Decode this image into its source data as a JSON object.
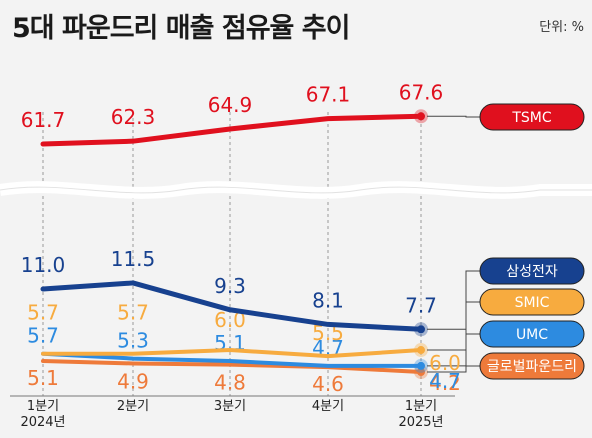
{
  "title": "5대 파운드리 매출 점유율 추이",
  "unit": "단위: %",
  "colors": {
    "tsmc": "#e0101e",
    "samsung": "#17418f",
    "smic": "#f7ab3f",
    "umc": "#2d8be0",
    "gf": "#ee7a3a"
  },
  "chart_data": {
    "type": "line",
    "title": "5대 파운드리 매출 점유율 추이",
    "unit": "단위: %",
    "categories": [
      "1분기 2024년",
      "2분기",
      "3분기",
      "4분기",
      "1분기 2025년"
    ],
    "x_tick_lines": [
      [
        "1분기",
        "2024년"
      ],
      [
        "2분기"
      ],
      [
        "3분기"
      ],
      [
        "4분기"
      ],
      [
        "1분기",
        "2025년"
      ]
    ],
    "y_axis": "broken (gap between ~12 and ~60)",
    "series": [
      {
        "key": "tsmc",
        "name": "TSMC",
        "values": [
          61.7,
          62.3,
          64.9,
          67.1,
          67.6
        ]
      },
      {
        "key": "samsung",
        "name": "삼성전자",
        "values": [
          11.0,
          11.5,
          9.3,
          8.1,
          7.7
        ]
      },
      {
        "key": "smic",
        "name": "SMIC",
        "values": [
          5.7,
          5.7,
          6.0,
          5.5,
          6.0
        ]
      },
      {
        "key": "umc",
        "name": "UMC",
        "values": [
          5.7,
          5.3,
          5.1,
          4.7,
          4.7
        ]
      },
      {
        "key": "gf",
        "name": "글로벌파운드리",
        "values": [
          5.1,
          4.9,
          4.8,
          4.6,
          4.2
        ]
      }
    ],
    "legend_position": "right"
  }
}
